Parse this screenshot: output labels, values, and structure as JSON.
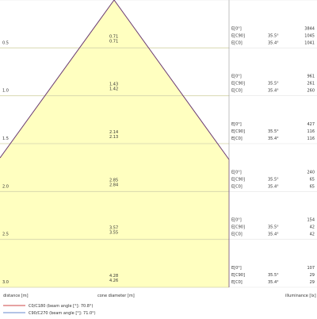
{
  "chart_data": {
    "type": "cone-diagram",
    "distance_label": "distance [m]",
    "diameter_label": "cone diameter [m]",
    "illuminance_label": "illuminance [lx]",
    "legend": [
      {
        "name": "C0/C180 (beam angle [°]: 70.8°)",
        "color": "#cc4444"
      },
      {
        "name": "C90/C270 (beam angle [°]: 71.0°)",
        "color": "#6688cc"
      }
    ],
    "fill_color": "#ffffc0",
    "rows": [
      {
        "distance": "0.5",
        "d_c0": "0.71",
        "d_c90": "0.71",
        "e_labels": [
          "E[0°]",
          "E[C90]",
          "E[C0]"
        ],
        "angles": [
          "",
          "35.5°",
          "35.4°"
        ],
        "values": [
          "3844",
          "1045",
          "1041"
        ]
      },
      {
        "distance": "1.0",
        "d_c0": "1.43",
        "d_c90": "1.42",
        "e_labels": [
          "E[0°]",
          "E[C90]",
          "E[C0]"
        ],
        "angles": [
          "",
          "35.5°",
          "35.4°"
        ],
        "values": [
          "961",
          "261",
          "260"
        ]
      },
      {
        "distance": "1.5",
        "d_c0": "2.14",
        "d_c90": "2.13",
        "e_labels": [
          "E[0°]",
          "E[C90]",
          "E[C0]"
        ],
        "angles": [
          "",
          "35.5°",
          "35.4°"
        ],
        "values": [
          "427",
          "116",
          "116"
        ]
      },
      {
        "distance": "2.0",
        "d_c0": "2.85",
        "d_c90": "2.84",
        "e_labels": [
          "E[0°]",
          "E[C90]",
          "E[C0]"
        ],
        "angles": [
          "",
          "35.5°",
          "35.4°"
        ],
        "values": [
          "240",
          "65",
          "65"
        ]
      },
      {
        "distance": "2.5",
        "d_c0": "3.57",
        "d_c90": "3.55",
        "e_labels": [
          "E[0°]",
          "E[C90]",
          "E[C0]"
        ],
        "angles": [
          "",
          "35.5°",
          "35.4°"
        ],
        "values": [
          "154",
          "42",
          "42"
        ]
      },
      {
        "distance": "3.0",
        "d_c0": "4.28",
        "d_c90": "4.26",
        "e_labels": [
          "E[0°]",
          "E[C90]",
          "E[C0]"
        ],
        "angles": [
          "",
          "35.5°",
          "35.4°"
        ],
        "values": [
          "107",
          "29",
          "29"
        ]
      }
    ]
  }
}
